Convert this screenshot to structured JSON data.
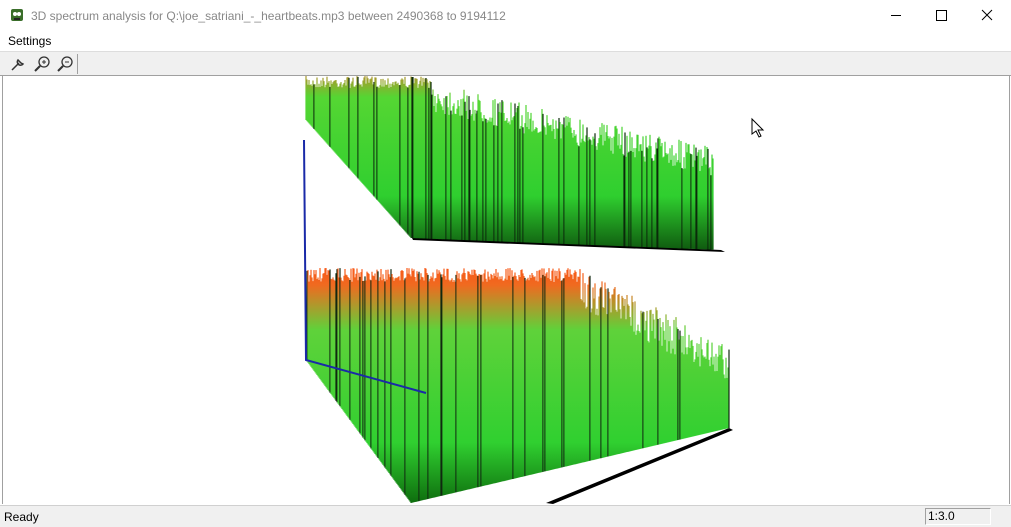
{
  "window": {
    "title": "3D spectrum analysis for Q:\\joe_satriani_-_heartbeats.mp3 between 2490368 to 9194112"
  },
  "menu": [
    "Settings"
  ],
  "status": {
    "text": "Ready",
    "ratio": "1:3.0"
  }
}
